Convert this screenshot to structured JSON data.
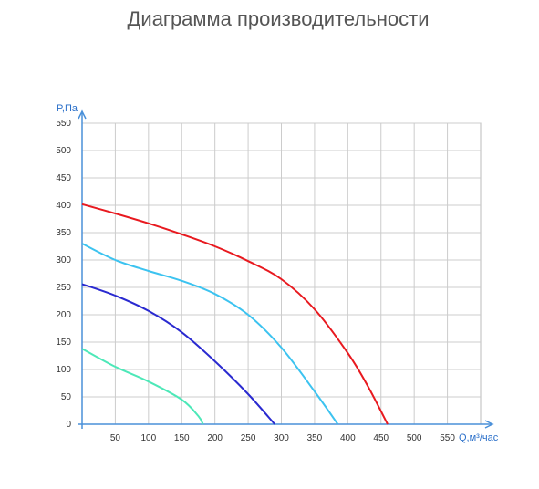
{
  "chart_data": {
    "type": "line",
    "title": "Диаграмма производительности",
    "y_label": "P,Па",
    "x_label": "Q,м³/час",
    "xlim": [
      0,
      600
    ],
    "ylim": [
      0,
      550
    ],
    "xticks": [
      50,
      100,
      150,
      200,
      250,
      300,
      350,
      400,
      450,
      500,
      550
    ],
    "yticks": [
      0,
      50,
      100,
      150,
      200,
      250,
      300,
      350,
      400,
      450,
      500,
      550
    ],
    "grid": true,
    "series": [
      {
        "color": "#e8191f",
        "x": [
          0,
          50,
          100,
          150,
          200,
          250,
          300,
          350,
          400,
          430,
          460
        ],
        "values": [
          402,
          385,
          367,
          347,
          325,
          298,
          265,
          210,
          130,
          70,
          0
        ]
      },
      {
        "color": "#3cc3f0",
        "x": [
          0,
          50,
          100,
          150,
          200,
          250,
          300,
          350,
          385
        ],
        "values": [
          330,
          300,
          280,
          262,
          238,
          200,
          140,
          60,
          0
        ]
      },
      {
        "color": "#2a2ad0",
        "x": [
          0,
          50,
          100,
          150,
          200,
          250,
          290
        ],
        "values": [
          256,
          235,
          207,
          168,
          115,
          55,
          0
        ]
      },
      {
        "color": "#4de8b8",
        "x": [
          0,
          50,
          100,
          150,
          175,
          182
        ],
        "values": [
          138,
          105,
          78,
          45,
          15,
          0
        ]
      }
    ]
  }
}
